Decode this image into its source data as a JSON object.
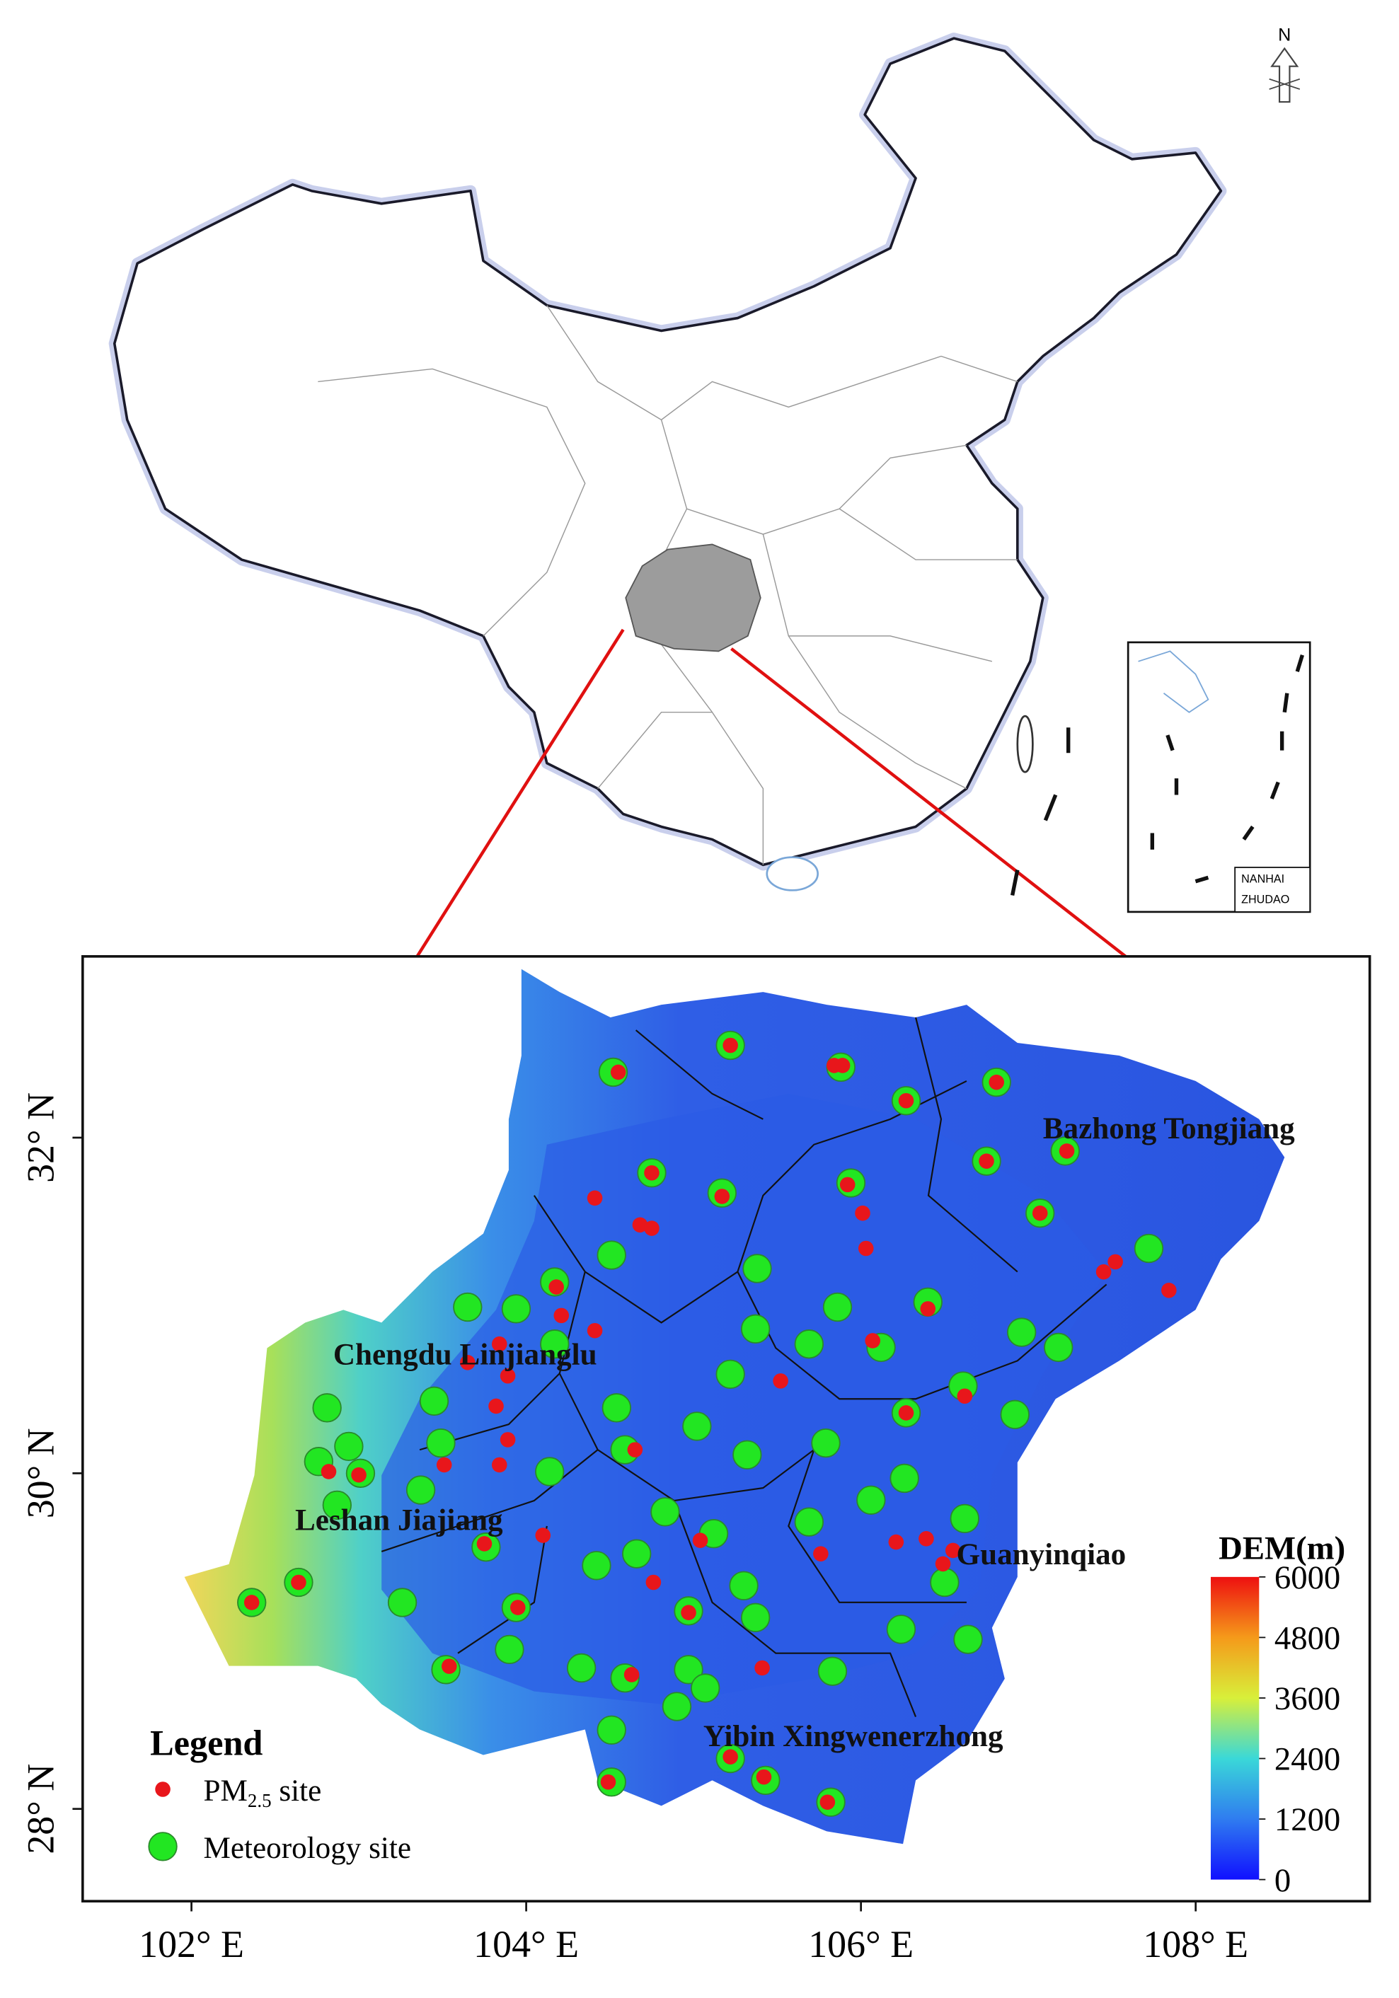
{
  "north_arrow": "N",
  "inset": {
    "label_line1": "NANHAI",
    "label_line2": "ZHUDAO"
  },
  "map": {
    "xlim": [
      101.35,
      109.04
    ],
    "ylim": [
      27.45,
      33.08
    ],
    "xticks": [
      {
        "value": 102,
        "label": "102° E"
      },
      {
        "value": 104,
        "label": "104° E"
      },
      {
        "value": 106,
        "label": "106° E"
      },
      {
        "value": 108,
        "label": "108° E"
      }
    ],
    "yticks": [
      {
        "value": 28,
        "label": "28° N"
      },
      {
        "value": 30,
        "label": "30° N"
      },
      {
        "value": 32,
        "label": "32° N"
      }
    ],
    "station_labels": [
      "Bazhong Tongjiang",
      "Chengdu Linjianglu",
      "Leshan Jiajiang",
      "Guanyinqiao",
      "Yibin Xingwenerzhong"
    ],
    "sites": {
      "meteorology": {
        "color": "#22e622",
        "lon": [
          104.52,
          105.22,
          105.88,
          106.27,
          106.81,
          107.22,
          106.75,
          104.75,
          105.17,
          105.94,
          107.07,
          107.72,
          104.51,
          104.17,
          103.65,
          103.94,
          105.38,
          105.86,
          106.4,
          106.96,
          107.18,
          105.37,
          105.69,
          106.12,
          105.22,
          104.17,
          103.45,
          102.81,
          104.54,
          105.02,
          106.27,
          106.61,
          106.92,
          105.79,
          105.32,
          104.59,
          103.49,
          102.94,
          102.76,
          103.01,
          103.37,
          104.14,
          104.83,
          105.69,
          106.06,
          106.26,
          106.62,
          106.5,
          105.12,
          104.66,
          104.42,
          103.76,
          102.87,
          102.64,
          102.36,
          103.26,
          103.94,
          104.97,
          105.3,
          105.37,
          106.24,
          106.64,
          103.9,
          103.52,
          104.33,
          104.59,
          104.97,
          105.07,
          105.83,
          104.9,
          104.51,
          105.22,
          105.43,
          104.51,
          105.82
        ],
        "lat": [
          32.39,
          32.55,
          32.42,
          32.22,
          32.33,
          31.92,
          31.86,
          31.79,
          31.67,
          31.73,
          31.55,
          31.34,
          31.3,
          31.14,
          30.99,
          30.98,
          31.22,
          30.99,
          31.02,
          30.84,
          30.75,
          30.86,
          30.77,
          30.75,
          30.59,
          30.77,
          30.43,
          30.39,
          30.39,
          30.28,
          30.36,
          30.52,
          30.35,
          30.18,
          30.11,
          30.14,
          30.18,
          30.16,
          30.07,
          30.0,
          29.9,
          30.01,
          29.77,
          29.71,
          29.84,
          29.97,
          29.73,
          29.35,
          29.64,
          29.52,
          29.45,
          29.56,
          29.81,
          29.35,
          29.23,
          29.23,
          29.2,
          29.18,
          29.33,
          29.14,
          29.07,
          29.01,
          28.95,
          28.83,
          28.84,
          28.78,
          28.83,
          28.72,
          28.82,
          28.61,
          28.47,
          28.3,
          28.17,
          28.16,
          28.04
        ]
      },
      "pm25": {
        "color": "#e8161b",
        "lon": [
          104.55,
          105.22,
          105.84,
          105.89,
          106.27,
          107.23,
          106.75,
          104.75,
          105.17,
          105.92,
          106.01,
          106.03,
          107.45,
          107.52,
          107.84,
          104.41,
          104.68,
          104.75,
          104.18,
          104.21,
          104.41,
          103.84,
          103.65,
          103.89,
          103.82,
          103.89,
          103.84,
          103.51,
          105.52,
          106.07,
          106.27,
          106.62,
          106.4,
          104.65,
          105.04,
          105.76,
          106.21,
          106.39,
          106.49,
          106.55,
          104.76,
          103.75,
          104.1,
          104.63,
          105.41,
          105.22,
          105.42,
          105.8,
          104.49,
          103.54,
          102.82,
          103.0,
          102.36,
          102.64,
          103.95,
          104.97,
          106.81,
          107.07
        ],
        "lat": [
          32.39,
          32.55,
          32.43,
          32.43,
          32.22,
          31.92,
          31.86,
          31.79,
          31.65,
          31.72,
          31.55,
          31.34,
          31.2,
          31.26,
          31.09,
          31.64,
          31.48,
          31.46,
          31.11,
          30.94,
          30.85,
          30.77,
          30.66,
          30.58,
          30.4,
          30.2,
          30.05,
          30.05,
          30.55,
          30.79,
          30.36,
          30.46,
          30.98,
          30.14,
          29.6,
          29.52,
          29.59,
          29.61,
          29.46,
          29.54,
          29.35,
          29.58,
          29.63,
          28.8,
          28.84,
          28.31,
          28.19,
          28.04,
          28.16,
          28.85,
          30.01,
          29.99,
          29.23,
          29.35,
          29.2,
          29.17,
          32.33,
          31.55
        ]
      }
    }
  },
  "legend": {
    "title": "Legend",
    "pm_label": "PM",
    "pm_sub": "2.5",
    "pm_suffix": " site",
    "meteorology_label": "Meteorology site"
  },
  "colorbar": {
    "title": "DEM(m)",
    "range": [
      0,
      6000
    ],
    "ticks": [
      0,
      1200,
      2400,
      3600,
      4800,
      6000
    ]
  }
}
